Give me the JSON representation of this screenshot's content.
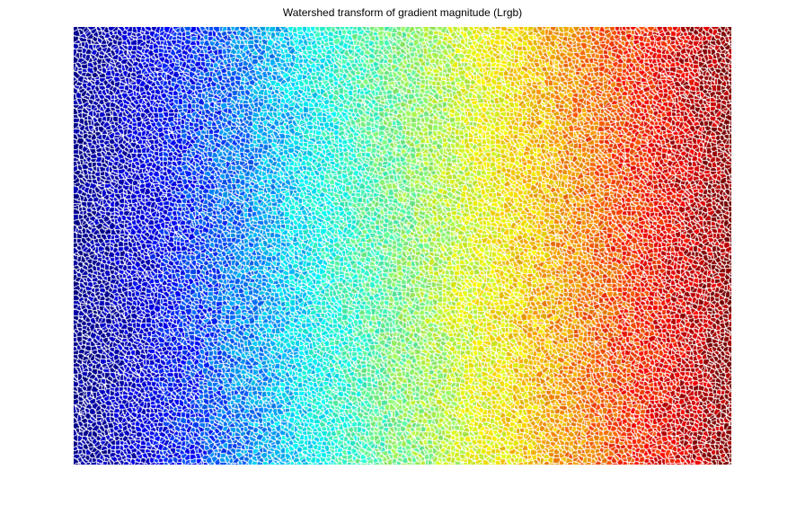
{
  "figure": {
    "title": "Watershed transform of gradient magnitude (Lrgb)"
  },
  "image": {
    "content": "watershed-label-image",
    "colormap": "jet",
    "colormap_direction": "left-to-right",
    "boundary_color": "#ffffff",
    "background_color": "#ffffff",
    "colormap_stops": [
      "#00008f",
      "#0000ff",
      "#00ffff",
      "#80ff80",
      "#ffff00",
      "#ff8000",
      "#ff0000",
      "#800000"
    ]
  }
}
